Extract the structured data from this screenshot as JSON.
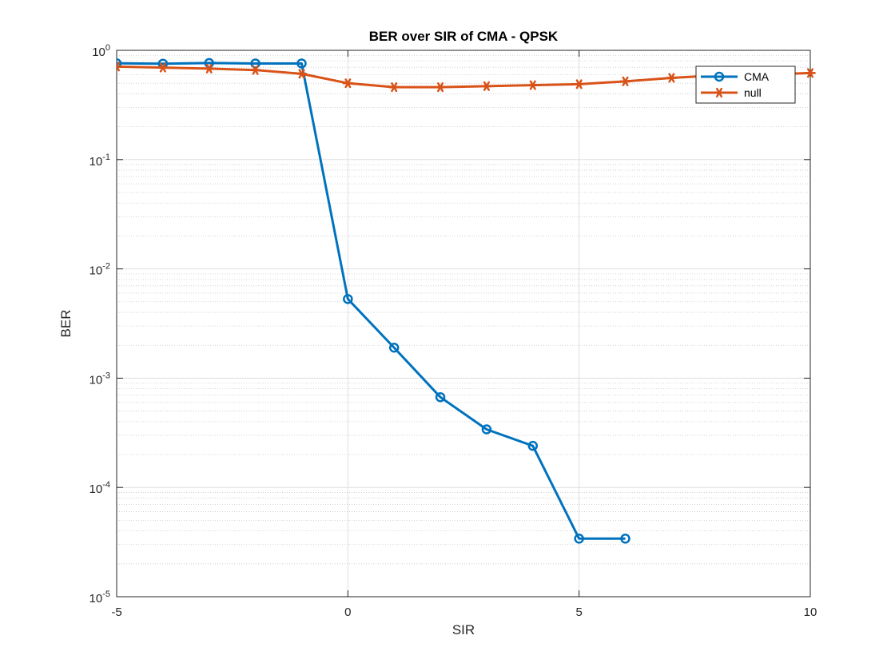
{
  "chart_data": {
    "type": "line",
    "title": "BER over SIR of CMA - QPSK",
    "xlabel": "SIR",
    "ylabel": "BER",
    "xlim": [
      -5,
      10
    ],
    "ylim": [
      1e-05,
      1
    ],
    "yscale": "log",
    "grid": true,
    "minor_grid": true,
    "legend_position": "top-right",
    "x_ticks": [
      {
        "value": -5,
        "label": "-5"
      },
      {
        "value": 0,
        "label": "0"
      },
      {
        "value": 5,
        "label": "5"
      },
      {
        "value": 10,
        "label": "10"
      }
    ],
    "y_ticks": [
      {
        "value": 1,
        "base": "10",
        "exp": "0"
      },
      {
        "value": 0.1,
        "base": "10",
        "exp": "-1"
      },
      {
        "value": 0.01,
        "base": "10",
        "exp": "-2"
      },
      {
        "value": 0.001,
        "base": "10",
        "exp": "-3"
      },
      {
        "value": 0.0001,
        "base": "10",
        "exp": "-4"
      },
      {
        "value": 1e-05,
        "base": "10",
        "exp": "-5"
      }
    ],
    "series": [
      {
        "name": "CMA",
        "color": "#0072BD",
        "marker": "circle",
        "x": [
          -5,
          -4,
          -3,
          -2,
          -1,
          0,
          1,
          2,
          3,
          4,
          5,
          6
        ],
        "y": [
          0.76,
          0.755,
          0.765,
          0.758,
          0.758,
          0.0053,
          0.0019,
          0.00067,
          0.00034,
          0.00024,
          3.4e-05,
          3.4e-05
        ]
      },
      {
        "name": "null",
        "color": "#D95319",
        "marker": "asterisk",
        "x": [
          -5,
          -4,
          -3,
          -2,
          -1,
          0,
          1,
          2,
          3,
          4,
          5,
          6,
          7,
          8,
          9,
          10
        ],
        "y": [
          0.71,
          0.695,
          0.68,
          0.66,
          0.61,
          0.5,
          0.46,
          0.46,
          0.47,
          0.48,
          0.49,
          0.52,
          0.56,
          0.59,
          0.6,
          0.62
        ]
      }
    ]
  }
}
